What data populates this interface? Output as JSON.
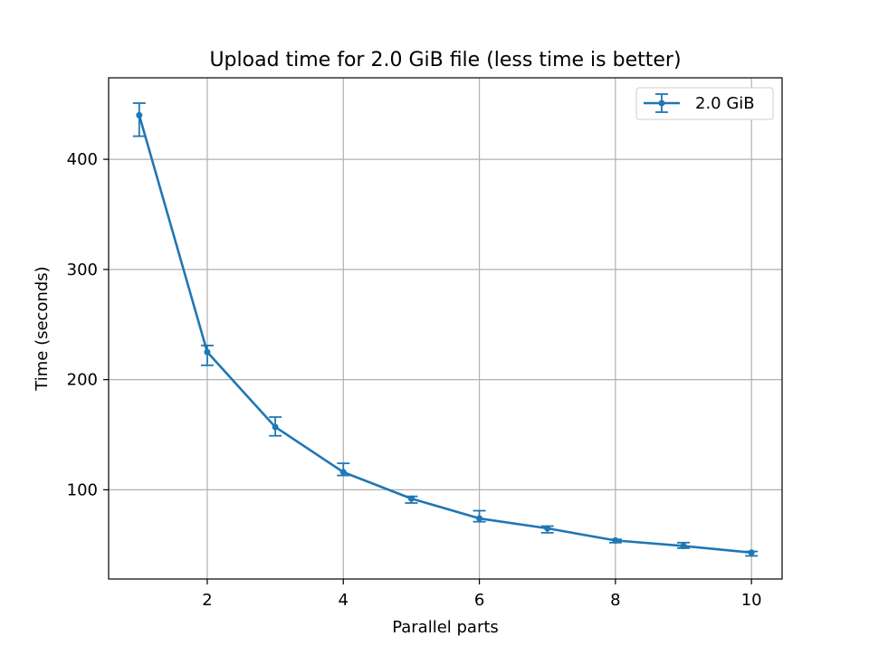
{
  "chart_data": {
    "type": "line",
    "title": "Upload time for 2.0 GiB file (less time is better)",
    "xlabel": "Parallel parts",
    "ylabel": "Time (seconds)",
    "xlim": [
      0.55,
      10.45
    ],
    "ylim": [
      19,
      474
    ],
    "x_ticks": [
      2,
      4,
      6,
      8,
      10
    ],
    "y_ticks": [
      100,
      200,
      300,
      400
    ],
    "grid": true,
    "legend": "upper right",
    "series": [
      {
        "name": "2.0 GiB",
        "color": "#1f77b4",
        "x": [
          1,
          2,
          3,
          4,
          5,
          6,
          7,
          8,
          9,
          10
        ],
        "y": [
          440,
          225,
          157,
          116,
          92,
          74,
          65,
          54,
          49,
          43
        ],
        "err_low": [
          421,
          213,
          149,
          113,
          88,
          71,
          61,
          52,
          47,
          40
        ],
        "err_high": [
          451,
          231,
          166,
          124,
          94,
          81,
          67,
          55,
          52,
          44
        ]
      }
    ]
  }
}
